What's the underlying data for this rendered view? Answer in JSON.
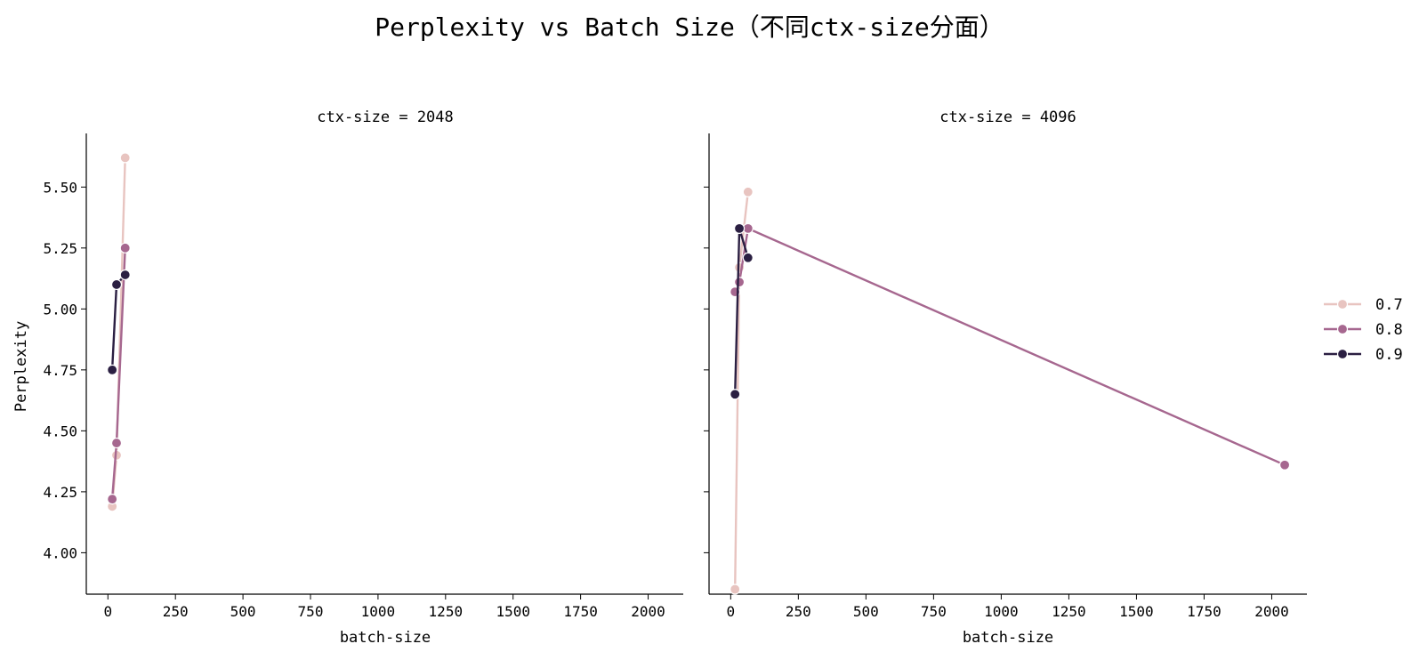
{
  "chart_data": {
    "type": "line",
    "title": "Perplexity vs Batch Size（不同ctx-size分面）",
    "xlabel": "batch-size",
    "ylabel": "Perplexity",
    "xlim": [
      -80,
      2130
    ],
    "ylim": [
      3.83,
      5.72
    ],
    "xticks": [
      0,
      250,
      500,
      750,
      1000,
      1250,
      1500,
      1750,
      2000
    ],
    "yticks": [
      "4.00",
      "4.25",
      "4.50",
      "4.75",
      "5.00",
      "5.25",
      "5.50"
    ],
    "grid": false,
    "legend": {
      "placement": "right",
      "entries": [
        {
          "label": "0.7",
          "color": "#e8c4c0"
        },
        {
          "label": "0.8",
          "color": "#a6678f"
        },
        {
          "label": "0.9",
          "color": "#2b1f42"
        }
      ]
    },
    "facets": [
      {
        "title": "ctx-size = 2048",
        "series": [
          {
            "name": "0.7",
            "color": "#e8c4c0",
            "x": [
              16,
              32,
              64
            ],
            "y": [
              4.19,
              4.4,
              5.62
            ]
          },
          {
            "name": "0.8",
            "color": "#a6678f",
            "x": [
              16,
              32,
              64
            ],
            "y": [
              4.22,
              4.45,
              5.25
            ]
          },
          {
            "name": "0.9",
            "color": "#2b1f42",
            "x": [
              16,
              32,
              64
            ],
            "y": [
              4.75,
              5.1,
              5.14
            ]
          }
        ]
      },
      {
        "title": "ctx-size = 4096",
        "series": [
          {
            "name": "0.7",
            "color": "#e8c4c0",
            "x": [
              16,
              32,
              64
            ],
            "y": [
              3.85,
              5.17,
              5.48
            ]
          },
          {
            "name": "0.8",
            "color": "#a6678f",
            "x": [
              16,
              32,
              64,
              2048
            ],
            "y": [
              5.07,
              5.11,
              5.33,
              4.36
            ]
          },
          {
            "name": "0.9",
            "color": "#2b1f42",
            "x": [
              16,
              32,
              64
            ],
            "y": [
              4.65,
              5.33,
              5.21
            ]
          }
        ]
      }
    ]
  }
}
